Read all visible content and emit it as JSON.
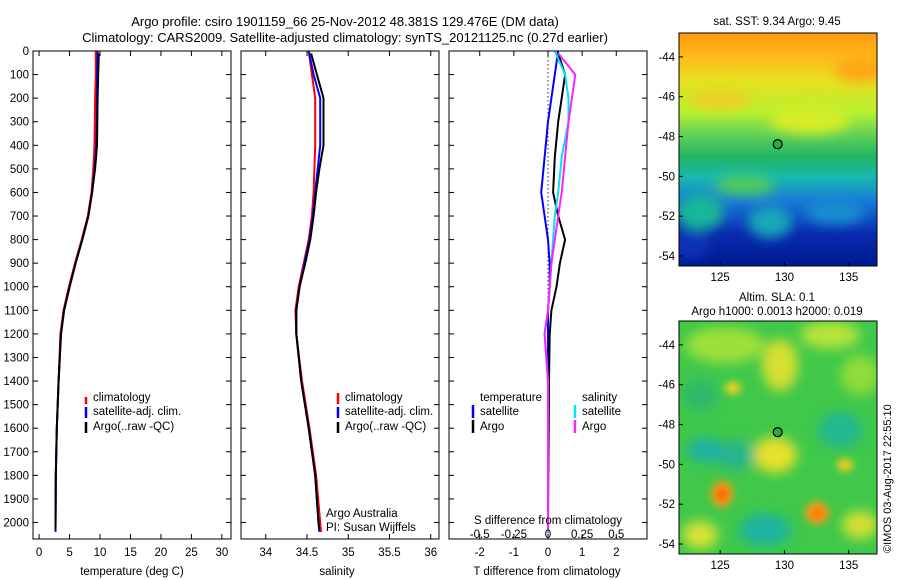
{
  "title_line1": "Argo profile: csiro 1901159_66 25-Nov-2012 48.381S 129.476E (DM data)",
  "title_line2": "Climatology: CARS2009. Satellite-adjusted climatology: synTS_20121125.nc (0.27d earlier)",
  "side_note": "©IMOS 03-Aug-2017 22:55:10",
  "credit_line1": "Argo Australia",
  "credit_line2": "PI: Susan Wijffels",
  "colors": {
    "climatology": "#ff0000",
    "satellite_adj": "#0000ff",
    "argo": "#000000",
    "salinity_satellite": "#00e5ee",
    "salinity_argo": "#ff22ff"
  },
  "chart_data": [
    {
      "type": "line",
      "id": "temperature",
      "xlabel": "temperature (deg C)",
      "xlim": [
        -1,
        31.5
      ],
      "xticks": [
        0,
        5,
        10,
        15,
        20,
        25,
        30
      ],
      "ylim": [
        2070,
        0
      ],
      "yticks": [
        0,
        100,
        200,
        300,
        400,
        500,
        600,
        700,
        800,
        900,
        1000,
        1100,
        1200,
        1300,
        1400,
        1500,
        1600,
        1700,
        1800,
        1900,
        2000
      ],
      "legend": {
        "position": "lower-middle",
        "entries": [
          "climatology",
          "satellite-adj. clim.",
          "Argo(..raw -QC)"
        ]
      },
      "series": [
        {
          "name": "climatology",
          "x": [
            9.3,
            9.3,
            9.2,
            9.1,
            8.9,
            8.6,
            8.0,
            7.0,
            5.9,
            4.9,
            4.0,
            3.5,
            3.2,
            2.9,
            2.75,
            2.7
          ],
          "y": [
            0,
            100,
            200,
            400,
            500,
            600,
            700,
            800,
            900,
            1000,
            1100,
            1200,
            1400,
            1600,
            1800,
            2040
          ]
        },
        {
          "name": "satellite-adj. clim.",
          "x": [
            9.6,
            9.5,
            9.5,
            9.4,
            9.1,
            8.7,
            8.1,
            7.1,
            6.0,
            5.0,
            4.1,
            3.6,
            3.2,
            2.9,
            2.75,
            2.7
          ],
          "y": [
            0,
            100,
            200,
            400,
            500,
            600,
            700,
            800,
            900,
            1000,
            1100,
            1200,
            1400,
            1600,
            1800,
            2040
          ]
        },
        {
          "name": "Argo(..raw -QC)",
          "x": [
            9.8,
            9.7,
            9.6,
            9.5,
            9.2,
            8.7,
            8.1,
            7.1,
            6.0,
            5.0,
            4.1,
            3.6,
            3.2,
            2.9,
            2.75,
            2.7
          ],
          "y": [
            10,
            100,
            200,
            400,
            500,
            600,
            700,
            800,
            900,
            1000,
            1100,
            1200,
            1400,
            1600,
            1800,
            2030
          ]
        }
      ]
    },
    {
      "type": "line",
      "id": "salinity",
      "xlabel": "salinity",
      "xlim": [
        33.7,
        36.1
      ],
      "xticks": [
        34,
        34.5,
        35,
        35.5,
        36
      ],
      "ylim": [
        2070,
        0
      ],
      "legend": {
        "position": "lower-middle",
        "entries": [
          "climatology",
          "satellite-adj. clim.",
          "Argo(..raw -QC)"
        ]
      },
      "series": [
        {
          "name": "climatology",
          "x": [
            34.52,
            34.56,
            34.6,
            34.6,
            34.59,
            34.58,
            34.56,
            34.52,
            34.46,
            34.4,
            34.36,
            34.37,
            34.44,
            34.53,
            34.61,
            34.66,
            34.67
          ],
          "y": [
            0,
            100,
            200,
            400,
            500,
            600,
            700,
            800,
            900,
            1000,
            1100,
            1200,
            1400,
            1600,
            1800,
            2000,
            2040
          ]
        },
        {
          "name": "satellite-adj. clim.",
          "x": [
            34.52,
            34.58,
            34.66,
            34.66,
            34.63,
            34.6,
            34.57,
            34.53,
            34.47,
            34.41,
            34.37,
            34.37,
            34.43,
            34.52,
            34.6,
            34.64,
            34.65
          ],
          "y": [
            0,
            100,
            200,
            400,
            500,
            600,
            700,
            800,
            900,
            1000,
            1100,
            1200,
            1400,
            1600,
            1800,
            2000,
            2040
          ]
        },
        {
          "name": "Argo(..raw -QC)",
          "x": [
            34.55,
            34.62,
            34.7,
            34.7,
            34.65,
            34.61,
            34.58,
            34.54,
            34.48,
            34.41,
            34.37,
            34.37,
            34.43,
            34.52,
            34.6,
            34.64,
            34.65
          ],
          "y": [
            10,
            100,
            200,
            400,
            500,
            600,
            700,
            800,
            900,
            1000,
            1100,
            1200,
            1400,
            1600,
            1800,
            2000,
            2030
          ]
        }
      ]
    },
    {
      "type": "line",
      "id": "difference",
      "xlabel": "T difference from climatology",
      "xlabel_top": "S difference from climatology",
      "xlim": [
        -2.9,
        2.9
      ],
      "xticks": [
        -2,
        -1,
        0,
        1,
        2
      ],
      "xticklabels": [
        "-2",
        "-1",
        "0",
        "1",
        "2"
      ],
      "xticks_top": [
        -2,
        -1,
        0,
        1,
        2
      ],
      "xticklabels_top": [
        "-0.5",
        "-0.25",
        "0",
        "0.25",
        "0.5"
      ],
      "ylim": [
        2070,
        0
      ],
      "legend": {
        "position": "lower-middle",
        "temperature_heading": "temperature",
        "salinity_heading": "salinity",
        "temperature_entries": [
          "satellite",
          "Argo"
        ],
        "salinity_entries": [
          "satellite",
          "Argo"
        ]
      },
      "series": [
        {
          "name": "temperature satellite",
          "x": [
            0.3,
            0.2,
            0.1,
            0.0,
            -0.1,
            -0.2,
            -0.1,
            0.0,
            0.05,
            0.05,
            0.0,
            0.0,
            0.0,
            0.0,
            0.0,
            0.0
          ],
          "y": [
            0,
            100,
            200,
            300,
            450,
            600,
            700,
            800,
            900,
            1000,
            1100,
            1200,
            1400,
            1600,
            1800,
            2040
          ]
        },
        {
          "name": "temperature Argo",
          "x": [
            0.3,
            0.5,
            0.4,
            0.3,
            0.2,
            0.15,
            0.3,
            0.5,
            0.35,
            0.25,
            0.1,
            0.05,
            0.03,
            0.02,
            0.01,
            0.0
          ],
          "y": [
            10,
            100,
            200,
            300,
            450,
            600,
            700,
            800,
            900,
            1000,
            1100,
            1200,
            1400,
            1600,
            1800,
            2030
          ]
        },
        {
          "name": "salinity satellite",
          "x": [
            0.2,
            0.5,
            0.6,
            0.6,
            0.4,
            0.3,
            0.2,
            0.15,
            0.1,
            0.05,
            0.0,
            -0.1,
            0.0,
            0.0,
            0.0,
            0.0
          ],
          "y": [
            0,
            100,
            200,
            300,
            450,
            600,
            700,
            800,
            900,
            1000,
            1100,
            1200,
            1400,
            1600,
            1800,
            2040
          ]
        },
        {
          "name": "salinity Argo",
          "x": [
            0.3,
            0.8,
            0.7,
            0.6,
            0.5,
            0.4,
            0.3,
            0.2,
            0.1,
            0.05,
            0.0,
            -0.1,
            0.0,
            0.0,
            0.0,
            0.0
          ],
          "y": [
            10,
            100,
            200,
            300,
            450,
            600,
            700,
            800,
            900,
            1000,
            1100,
            1200,
            1400,
            1600,
            1800,
            2030
          ]
        }
      ]
    },
    {
      "type": "heatmap",
      "id": "sst-map",
      "title": "sat. SST: 9.34  Argo: 9.45",
      "xlim": [
        121.8,
        137.2
      ],
      "ylim": [
        -54.5,
        -42.8
      ],
      "xticks": [
        125,
        130,
        135
      ],
      "yticks": [
        -44,
        -46,
        -48,
        -50,
        -52,
        -54
      ],
      "marker": {
        "lon": 129.476,
        "lat": -48.381
      }
    },
    {
      "type": "heatmap",
      "id": "sla-map",
      "title_line1": "Altim. SLA: 0.1",
      "title_line2": "Argo h1000: 0.0013 h2000: 0.019",
      "xlim": [
        121.8,
        137.2
      ],
      "ylim": [
        -54.5,
        -42.8
      ],
      "xticks": [
        125,
        130,
        135
      ],
      "yticks": [
        -44,
        -46,
        -48,
        -50,
        -52,
        -54
      ],
      "marker": {
        "lon": 129.476,
        "lat": -48.381
      }
    }
  ]
}
